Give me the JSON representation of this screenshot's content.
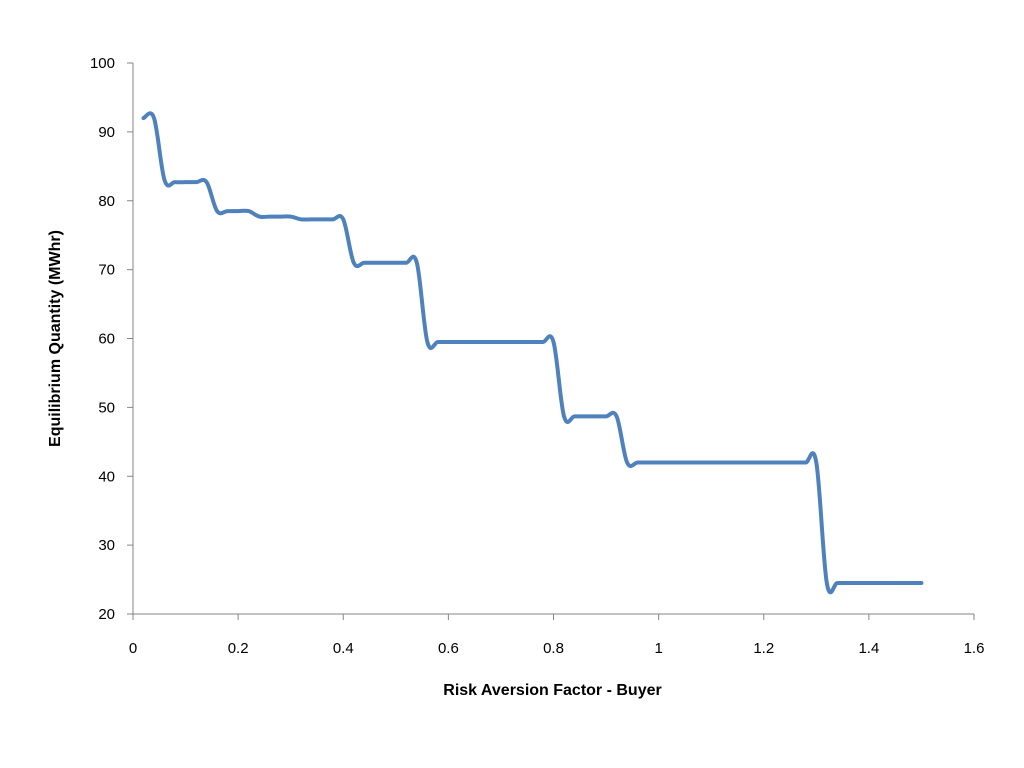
{
  "chart_data": {
    "type": "line",
    "title": "",
    "xlabel": "Risk Aversion Factor - Buyer",
    "ylabel": "Equilibrium Quantity (MWhr)",
    "xlim": [
      0,
      1.6
    ],
    "ylim": [
      20,
      100
    ],
    "x_ticks": [
      0,
      0.2,
      0.4,
      0.6,
      0.8,
      1,
      1.2,
      1.4,
      1.6
    ],
    "x_tick_labels": [
      "0",
      "0.2",
      "0.4",
      "0.6",
      "0.8",
      "1",
      "1.2",
      "1.4",
      "1.6"
    ],
    "y_ticks": [
      20,
      30,
      40,
      50,
      60,
      70,
      80,
      90,
      100
    ],
    "y_tick_labels": [
      "20",
      "30",
      "40",
      "50",
      "60",
      "70",
      "80",
      "90",
      "100"
    ],
    "grid": false,
    "legend": "none",
    "series": [
      {
        "color": "#4f81bd",
        "x": [
          0.02,
          0.04,
          0.06,
          0.08,
          0.1,
          0.12,
          0.14,
          0.16,
          0.18,
          0.2,
          0.22,
          0.24,
          0.26,
          0.28,
          0.3,
          0.32,
          0.34,
          0.36,
          0.38,
          0.4,
          0.42,
          0.44,
          0.46,
          0.48,
          0.5,
          0.52,
          0.54,
          0.56,
          0.58,
          0.6,
          0.62,
          0.64,
          0.66,
          0.68,
          0.7,
          0.72,
          0.74,
          0.76,
          0.78,
          0.8,
          0.82,
          0.84,
          0.86,
          0.88,
          0.9,
          0.92,
          0.94,
          0.96,
          0.98,
          1.0,
          1.02,
          1.04,
          1.06,
          1.08,
          1.1,
          1.12,
          1.14,
          1.16,
          1.18,
          1.2,
          1.22,
          1.24,
          1.26,
          1.28,
          1.3,
          1.32,
          1.34,
          1.36,
          1.38,
          1.4,
          1.42,
          1.44,
          1.46,
          1.48,
          1.5
        ],
        "y": [
          92,
          92,
          83,
          82.7,
          82.7,
          82.7,
          82.7,
          78.5,
          78.5,
          78.5,
          78.5,
          77.7,
          77.7,
          77.7,
          77.7,
          77.3,
          77.3,
          77.3,
          77.3,
          77.3,
          71,
          71,
          71,
          71,
          71,
          71,
          71,
          59.5,
          59.5,
          59.5,
          59.5,
          59.5,
          59.5,
          59.5,
          59.5,
          59.5,
          59.5,
          59.5,
          59.5,
          59.5,
          48.7,
          48.7,
          48.7,
          48.7,
          48.7,
          48.7,
          42,
          42,
          42,
          42,
          42,
          42,
          42,
          42,
          42,
          42,
          42,
          42,
          42,
          42,
          42,
          42,
          42,
          42,
          42,
          24.5,
          24.5,
          24.5,
          24.5,
          24.5,
          24.5,
          24.5,
          24.5,
          24.5,
          24.5
        ]
      }
    ]
  }
}
